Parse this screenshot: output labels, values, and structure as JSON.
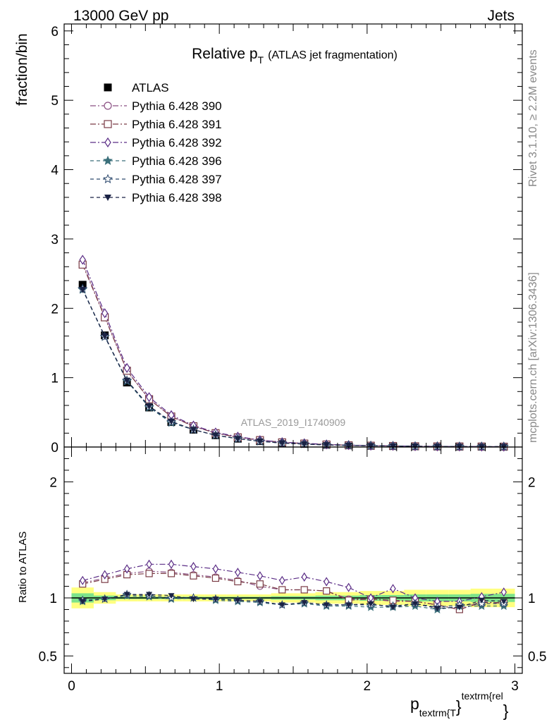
{
  "header": {
    "left": "13000 GeV pp",
    "right": "Jets"
  },
  "side_text": {
    "rivet": "Rivet 3.1.10, ≥ 2.2M events",
    "mcplots": "mcplots.cern.ch [arXiv:1306.3436]"
  },
  "chart_data": [
    {
      "type": "scatter",
      "title": "Relative p",
      "title_sub": "T",
      "title_suffix": "(ATLAS jet fragmentation)",
      "watermark": "ATLAS_2019_I1740909",
      "ylabel": "fraction/bin",
      "ylim": [
        0,
        6.1
      ],
      "yticks": [
        "0",
        "1",
        "2",
        "3",
        "4",
        "5",
        "6"
      ],
      "xlim": [
        -0.05,
        3.05
      ],
      "legend_placement": "upper-left",
      "x": [
        0.075,
        0.225,
        0.375,
        0.525,
        0.675,
        0.825,
        0.975,
        1.125,
        1.275,
        1.425,
        1.575,
        1.725,
        1.875,
        2.025,
        2.175,
        2.325,
        2.475,
        2.625,
        2.775,
        2.925
      ],
      "series": [
        {
          "name": "ATLAS",
          "color": "#000000",
          "marker": "square-filled",
          "dash": "none",
          "values": [
            2.34,
            1.61,
            0.93,
            0.57,
            0.36,
            0.25,
            0.17,
            0.12,
            0.085,
            0.06,
            0.045,
            0.033,
            0.025,
            0.019,
            0.015,
            0.011,
            0.009,
            0.007,
            0.006,
            0.005
          ]
        },
        {
          "name": "Pythia 6.428 390",
          "color": "#8a4f82",
          "marker": "circle-open",
          "dash": "8,3,2,3",
          "values": [
            2.65,
            1.88,
            1.1,
            0.69,
            0.44,
            0.3,
            0.2,
            0.14,
            0.1,
            0.068,
            0.05,
            0.036,
            0.027,
            0.019,
            0.015,
            0.011,
            0.009,
            0.007,
            0.006,
            0.005
          ]
        },
        {
          "name": "Pythia 6.428 391",
          "color": "#7a3b45",
          "marker": "square-open",
          "dash": "8,3,2,3",
          "values": [
            2.63,
            1.87,
            1.1,
            0.69,
            0.44,
            0.3,
            0.2,
            0.14,
            0.1,
            0.068,
            0.05,
            0.036,
            0.025,
            0.019,
            0.015,
            0.011,
            0.009,
            0.007,
            0.006,
            0.005
          ]
        },
        {
          "name": "Pythia 6.428 392",
          "color": "#5b2d86",
          "marker": "diamond-open",
          "dash": "8,3,2,3",
          "values": [
            2.7,
            1.93,
            1.14,
            0.72,
            0.46,
            0.31,
            0.21,
            0.15,
            0.1,
            0.07,
            0.055,
            0.038,
            0.028,
            0.019,
            0.016,
            0.011,
            0.009,
            0.007,
            0.006,
            0.005
          ]
        },
        {
          "name": "Pythia 6.428 396",
          "color": "#3a6f7a",
          "marker": "star-filled",
          "dash": "5,4",
          "values": [
            2.27,
            1.59,
            0.95,
            0.57,
            0.35,
            0.25,
            0.17,
            0.12,
            0.082,
            0.057,
            0.043,
            0.031,
            0.023,
            0.018,
            0.014,
            0.01,
            0.008,
            0.0065,
            0.0055,
            0.0047
          ]
        },
        {
          "name": "Pythia 6.428 397",
          "color": "#2e4a6e",
          "marker": "star-open",
          "dash": "5,4",
          "values": [
            2.28,
            1.59,
            0.96,
            0.58,
            0.36,
            0.25,
            0.17,
            0.12,
            0.082,
            0.057,
            0.043,
            0.031,
            0.023,
            0.018,
            0.014,
            0.01,
            0.008,
            0.0065,
            0.0055,
            0.0047
          ]
        },
        {
          "name": "Pythia 6.428 398",
          "color": "#1a2244",
          "marker": "triangle-down-filled",
          "dash": "5,4",
          "values": [
            2.27,
            1.6,
            0.96,
            0.59,
            0.37,
            0.25,
            0.17,
            0.12,
            0.082,
            0.057,
            0.043,
            0.031,
            0.023,
            0.018,
            0.014,
            0.01,
            0.008,
            0.0065,
            0.0055,
            0.0047
          ]
        }
      ]
    },
    {
      "type": "scatter",
      "ylabel": "Ratio to ATLAS",
      "xlabel": "p",
      "xlabel_sub": "textrm{T",
      "xlabel_sup": "textrm{rel",
      "xlabel_close": "}",
      "ylim": [
        0.35,
        2.3
      ],
      "yticks": [
        "0.5",
        "1",
        "2"
      ],
      "xlim": [
        -0.05,
        3.05
      ],
      "xticks": [
        "0",
        "1",
        "2",
        "3"
      ],
      "x": [
        0.075,
        0.225,
        0.375,
        0.525,
        0.675,
        0.825,
        0.975,
        1.125,
        1.275,
        1.425,
        1.575,
        1.725,
        1.875,
        2.025,
        2.175,
        2.325,
        2.475,
        2.625,
        2.775,
        2.925
      ],
      "band_yellow": [
        [
          0.91,
          1.09
        ],
        [
          0.95,
          1.05
        ],
        [
          0.97,
          1.03
        ],
        [
          0.97,
          1.03
        ],
        [
          0.97,
          1.03
        ],
        [
          0.97,
          1.03
        ],
        [
          0.97,
          1.03
        ],
        [
          0.97,
          1.03
        ],
        [
          0.97,
          1.03
        ],
        [
          0.96,
          1.04
        ],
        [
          0.96,
          1.04
        ],
        [
          0.95,
          1.05
        ],
        [
          0.95,
          1.05
        ],
        [
          0.94,
          1.06
        ],
        [
          0.94,
          1.06
        ],
        [
          0.93,
          1.07
        ],
        [
          0.93,
          1.07
        ],
        [
          0.93,
          1.07
        ],
        [
          0.92,
          1.08
        ],
        [
          0.92,
          1.08
        ]
      ],
      "band_green": [
        [
          0.96,
          1.04
        ],
        [
          0.98,
          1.02
        ],
        [
          0.99,
          1.01
        ],
        [
          0.99,
          1.01
        ],
        [
          0.99,
          1.01
        ],
        [
          0.99,
          1.01
        ],
        [
          0.99,
          1.01
        ],
        [
          0.99,
          1.01
        ],
        [
          0.99,
          1.01
        ],
        [
          0.985,
          1.015
        ],
        [
          0.985,
          1.015
        ],
        [
          0.98,
          1.02
        ],
        [
          0.98,
          1.02
        ],
        [
          0.975,
          1.025
        ],
        [
          0.975,
          1.025
        ],
        [
          0.97,
          1.03
        ],
        [
          0.97,
          1.03
        ],
        [
          0.97,
          1.03
        ],
        [
          0.965,
          1.035
        ],
        [
          0.965,
          1.035
        ]
      ],
      "series": [
        {
          "name": "Pythia 6.428 390",
          "color": "#8a4f82",
          "marker": "circle-open",
          "dash": "8,3,2,3",
          "values": [
            1.13,
            1.17,
            1.21,
            1.23,
            1.22,
            1.2,
            1.18,
            1.15,
            1.1,
            1.07,
            1.07,
            1.06,
            0.99,
            0.99,
            0.97,
            0.97,
            0.94,
            0.9,
            0.97,
            0.95
          ]
        },
        {
          "name": "Pythia 6.428 391",
          "color": "#7a3b45",
          "marker": "square-open",
          "dash": "8,3,2,3",
          "values": [
            1.12,
            1.16,
            1.2,
            1.21,
            1.21,
            1.19,
            1.17,
            1.14,
            1.12,
            1.07,
            1.07,
            1.06,
            0.98,
            0.99,
            0.98,
            0.97,
            0.94,
            0.9,
            0.96,
            0.96
          ]
        },
        {
          "name": "Pythia 6.428 392",
          "color": "#5b2d86",
          "marker": "diamond-open",
          "dash": "8,3,2,3",
          "values": [
            1.15,
            1.2,
            1.25,
            1.29,
            1.29,
            1.27,
            1.25,
            1.22,
            1.19,
            1.15,
            1.18,
            1.14,
            1.09,
            1.0,
            1.08,
            1.0,
            0.97,
            0.97,
            1.01,
            1.05
          ]
        },
        {
          "name": "Pythia 6.428 396",
          "color": "#3a6f7a",
          "marker": "star-filled",
          "dash": "5,4",
          "values": [
            0.97,
            0.99,
            1.02,
            1.01,
            0.99,
            1.0,
            0.98,
            0.97,
            0.96,
            0.94,
            0.95,
            0.93,
            0.93,
            0.92,
            0.92,
            0.93,
            0.9,
            0.93,
            0.93,
            0.93
          ]
        },
        {
          "name": "Pythia 6.428 397",
          "color": "#2e4a6e",
          "marker": "star-open",
          "dash": "5,4",
          "values": [
            0.98,
            0.99,
            1.03,
            1.02,
            1.0,
            1.0,
            0.99,
            0.98,
            0.97,
            0.94,
            0.96,
            0.94,
            0.94,
            0.94,
            0.93,
            0.95,
            0.92,
            0.94,
            0.95,
            0.95
          ]
        },
        {
          "name": "Pythia 6.428 398",
          "color": "#1a2244",
          "marker": "triangle-down-filled",
          "dash": "5,4",
          "values": [
            0.97,
            0.99,
            1.03,
            1.03,
            1.02,
            0.99,
            0.99,
            0.98,
            0.97,
            0.94,
            0.96,
            0.94,
            0.94,
            0.95,
            0.92,
            0.95,
            0.91,
            0.92,
            0.98,
            0.97
          ]
        }
      ]
    }
  ]
}
